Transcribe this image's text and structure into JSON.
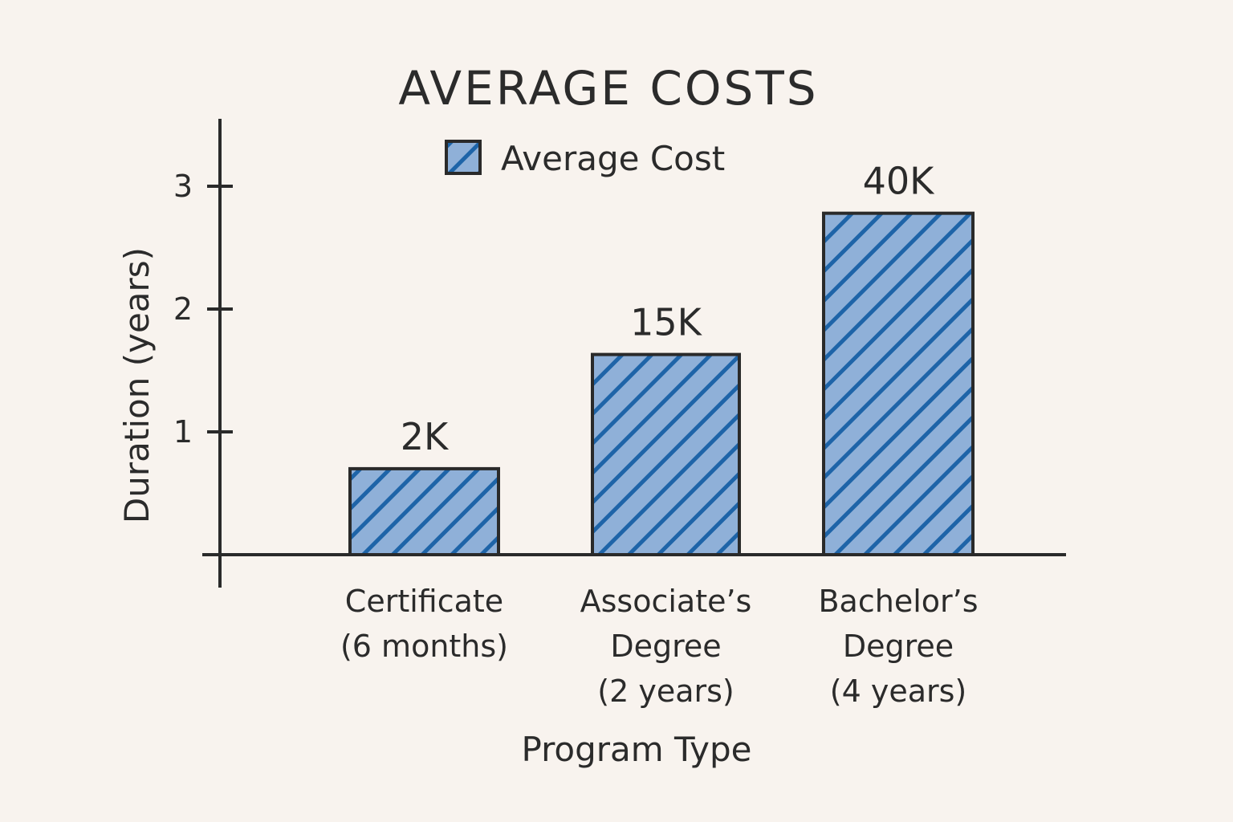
{
  "chart_data": {
    "type": "bar",
    "title": "AVERAGE COSTS",
    "xlabel": "Program Type",
    "ylabel": "Duration (years)",
    "ylim": [
      0,
      3.5
    ],
    "yticks": [
      "1",
      "2",
      "3"
    ],
    "grid": false,
    "legend": {
      "position": "top-center",
      "entries": [
        "Average Cost"
      ]
    },
    "categories": [
      [
        "Certificate",
        "(6 months)"
      ],
      [
        "Associate’s",
        "Degree",
        "(2 years)"
      ],
      [
        "Bachelor’s",
        "Degree",
        "(4 years)"
      ]
    ],
    "series": [
      {
        "name": "Average Cost",
        "values": [
          0.7,
          1.63,
          2.78
        ],
        "data_labels": [
          "2K",
          "15K",
          "40K"
        ]
      }
    ],
    "colors": {
      "bar_fill": "#8fb0d8",
      "hatch": "#1e64a8",
      "outline": "#2a2a2a",
      "background": "#f8f3ee"
    }
  }
}
